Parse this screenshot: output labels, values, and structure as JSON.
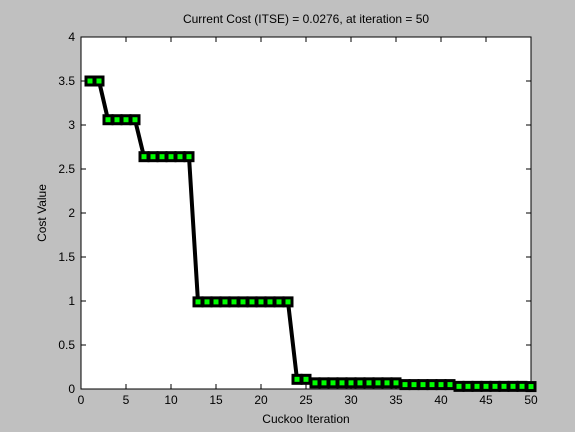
{
  "chart_data": {
    "type": "line",
    "title": "Current Cost (ITSE) = 0.0276, at iteration = 50",
    "xlabel": "Cuckoo Iteration",
    "ylabel": "Cost Value",
    "xlim": [
      0,
      50
    ],
    "ylim": [
      0,
      4
    ],
    "xticks": [
      0,
      5,
      10,
      15,
      20,
      25,
      30,
      35,
      40,
      45,
      50
    ],
    "yticks": [
      0,
      0.5,
      1,
      1.5,
      2,
      2.5,
      3,
      3.5,
      4
    ],
    "grid": false,
    "legend": "none",
    "colors": {
      "figure_bg": "#c0c0c0",
      "axes_bg": "#ffffff",
      "line": "#000000",
      "marker_face": "#00ff00",
      "marker_edge": "#000000"
    },
    "series": [
      {
        "x": [
          1,
          2,
          3,
          4,
          5,
          6,
          7,
          8,
          9,
          10,
          11,
          12,
          13,
          14,
          15,
          16,
          17,
          18,
          19,
          20,
          21,
          22,
          23,
          24,
          25,
          26,
          27,
          28,
          29,
          30,
          31,
          32,
          33,
          34,
          35,
          36,
          37,
          38,
          39,
          40,
          41,
          42,
          43,
          44,
          45,
          46,
          47,
          48,
          49,
          50
        ],
        "values": [
          3.5,
          3.5,
          3.06,
          3.06,
          3.06,
          3.06,
          2.64,
          2.64,
          2.64,
          2.64,
          2.64,
          2.64,
          0.99,
          0.99,
          0.99,
          0.99,
          0.99,
          0.99,
          0.99,
          0.99,
          0.99,
          0.99,
          0.99,
          0.11,
          0.11,
          0.07,
          0.07,
          0.07,
          0.07,
          0.07,
          0.07,
          0.07,
          0.07,
          0.07,
          0.07,
          0.05,
          0.05,
          0.05,
          0.05,
          0.05,
          0.05,
          0.03,
          0.03,
          0.03,
          0.03,
          0.03,
          0.03,
          0.03,
          0.03,
          0.0276
        ]
      }
    ]
  }
}
